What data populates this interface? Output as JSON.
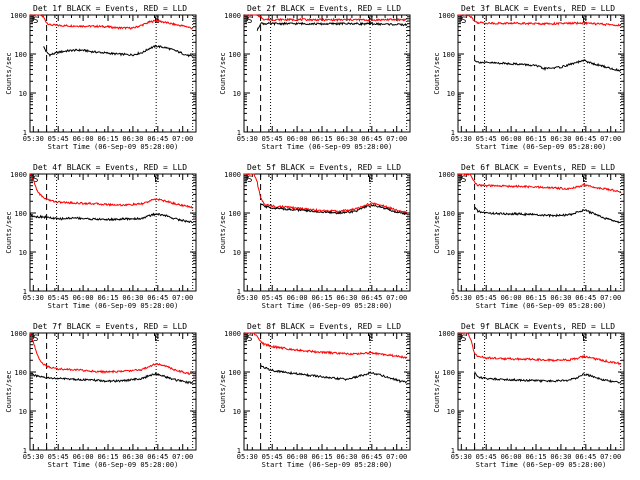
{
  "figure": {
    "xlabel": "Start Time (06-Sep-09 05:28:00)",
    "ylabel": "Counts/sec",
    "marker_start": "S",
    "marker_end": "E"
  },
  "chart_data": [
    {
      "type": "line",
      "title": "Det 1f BLACK = Events, RED = LLD",
      "xlabel": "Start Time (06-Sep-09 05:28:00)",
      "ylabel": "Counts/sec",
      "x_ticks": [
        "05:30",
        "05:45",
        "06:00",
        "06:15",
        "06:30",
        "06:45",
        "07:00"
      ],
      "y_ticks": [
        "1",
        "10",
        "100",
        "1000"
      ],
      "y_scale": "log",
      "xlim": [
        "05:28",
        "07:08"
      ],
      "ylim": [
        1,
        1000
      ],
      "markers": {
        "S": "05:28",
        "E": "06:44"
      },
      "dashed_vline": "05:38",
      "dotted_vlines": [
        "05:44",
        "06:44",
        "07:06"
      ],
      "series": [
        {
          "color": "#ff0000",
          "x": [
            "05:28",
            "05:34",
            "05:36",
            "05:38",
            "05:40",
            "05:45",
            "05:50",
            "06:00",
            "06:10",
            "06:15",
            "06:20",
            "06:30",
            "06:36",
            "06:40",
            "06:44",
            "06:50",
            "06:56",
            "07:02",
            "07:06"
          ],
          "values": [
            1000,
            1000,
            900,
            640,
            560,
            540,
            530,
            520,
            510,
            500,
            470,
            460,
            560,
            660,
            720,
            640,
            560,
            510,
            450
          ]
        },
        {
          "color": "#000000",
          "x": [
            "05:36",
            "05:38",
            "05:40",
            "05:45",
            "05:50",
            "05:55",
            "06:00",
            "06:05",
            "06:10",
            "06:20",
            "06:30",
            "06:36",
            "06:40",
            "06:44",
            "06:50",
            "06:56",
            "07:02",
            "07:06"
          ],
          "values": [
            160,
            110,
            95,
            110,
            120,
            125,
            125,
            115,
            110,
            100,
            95,
            110,
            140,
            160,
            145,
            120,
            95,
            85
          ]
        }
      ]
    },
    {
      "type": "line",
      "title": "Det 2f BLACK = Events, RED = LLD",
      "xlabel": "Start Time (06-Sep-09 05:28:00)",
      "ylabel": "Counts/sec",
      "x_ticks": [
        "05:30",
        "05:45",
        "06:00",
        "06:15",
        "06:30",
        "06:45",
        "07:00"
      ],
      "y_ticks": [
        "1",
        "10",
        "100",
        "1000"
      ],
      "y_scale": "log",
      "xlim": [
        "05:28",
        "07:08"
      ],
      "ylim": [
        1,
        1000
      ],
      "markers": {
        "S": "05:28",
        "E": "06:44"
      },
      "dashed_vline": "05:38",
      "dotted_vlines": [
        "05:44",
        "06:44",
        "07:06"
      ],
      "series": [
        {
          "color": "#ff0000",
          "x": [
            "05:28",
            "05:34",
            "05:36",
            "05:38",
            "05:40",
            "05:45",
            "05:55",
            "06:05",
            "06:15",
            "06:25",
            "06:35",
            "06:44",
            "06:55",
            "07:06"
          ],
          "values": [
            1000,
            1000,
            1000,
            900,
            780,
            760,
            760,
            760,
            750,
            750,
            760,
            740,
            760,
            760
          ]
        },
        {
          "color": "#000000",
          "x": [
            "05:36",
            "05:38",
            "05:40",
            "05:45",
            "05:55",
            "06:05",
            "06:15",
            "06:25",
            "06:35",
            "06:44",
            "06:55",
            "07:06"
          ],
          "values": [
            400,
            620,
            600,
            600,
            600,
            600,
            590,
            600,
            600,
            590,
            580,
            560
          ]
        }
      ]
    },
    {
      "type": "line",
      "title": "Det 3f BLACK = Events, RED = LLD",
      "xlabel": "Start Time (06-Sep-09 05:28:00)",
      "ylabel": "Counts/sec",
      "x_ticks": [
        "05:30",
        "05:45",
        "06:00",
        "06:15",
        "06:30",
        "06:45",
        "07:00"
      ],
      "y_ticks": [
        "1",
        "10",
        "100",
        "1000"
      ],
      "y_scale": "log",
      "xlim": [
        "05:28",
        "07:08"
      ],
      "ylim": [
        1,
        1000
      ],
      "markers": {
        "S": "05:28",
        "E": "06:44"
      },
      "dashed_vline": "05:38",
      "dotted_vlines": [
        "05:44",
        "06:44",
        "07:06"
      ],
      "series": [
        {
          "color": "#ff0000",
          "x": [
            "05:28",
            "05:34",
            "05:36",
            "05:38",
            "05:40",
            "05:45",
            "05:55",
            "06:05",
            "06:15",
            "06:25",
            "06:35",
            "06:44",
            "06:55",
            "07:06"
          ],
          "values": [
            1000,
            1000,
            900,
            680,
            640,
            620,
            610,
            620,
            600,
            600,
            610,
            620,
            580,
            540
          ]
        },
        {
          "color": "#000000",
          "x": [
            "05:38",
            "05:40",
            "05:45",
            "05:55",
            "06:05",
            "06:15",
            "06:20",
            "06:30",
            "06:36",
            "06:44",
            "06:50",
            "06:56",
            "07:02",
            "07:06"
          ],
          "values": [
            70,
            62,
            60,
            58,
            55,
            50,
            42,
            46,
            55,
            68,
            55,
            48,
            40,
            38
          ]
        }
      ]
    },
    {
      "type": "line",
      "title": "Det 4f BLACK = Events, RED = LLD",
      "xlabel": "Start Time (06-Sep-09 05:28:00)",
      "ylabel": "Counts/sec",
      "x_ticks": [
        "05:30",
        "05:45",
        "06:00",
        "06:15",
        "06:30",
        "06:45",
        "07:00"
      ],
      "y_ticks": [
        "1",
        "10",
        "100",
        "1000"
      ],
      "y_scale": "log",
      "xlim": [
        "05:28",
        "07:08"
      ],
      "ylim": [
        1,
        1000
      ],
      "markers": {
        "S": "05:28",
        "E": "06:44"
      },
      "dashed_vline": "05:38",
      "dotted_vlines": [
        "05:44",
        "06:44",
        "07:06"
      ],
      "series": [
        {
          "color": "#ff0000",
          "x": [
            "05:28",
            "05:30",
            "05:32",
            "05:34",
            "05:36",
            "05:40",
            "05:45",
            "05:55",
            "06:05",
            "06:15",
            "06:25",
            "06:35",
            "06:40",
            "06:44",
            "06:50",
            "06:56",
            "07:02",
            "07:06"
          ],
          "values": [
            1000,
            700,
            400,
            300,
            250,
            210,
            190,
            180,
            175,
            165,
            160,
            170,
            200,
            230,
            200,
            170,
            150,
            140
          ]
        },
        {
          "color": "#000000",
          "x": [
            "05:28",
            "05:30",
            "05:32",
            "05:36",
            "05:40",
            "05:45",
            "05:55",
            "06:05",
            "06:15",
            "06:25",
            "06:35",
            "06:40",
            "06:44",
            "06:50",
            "06:56",
            "07:02",
            "07:06"
          ],
          "values": [
            90,
            85,
            80,
            80,
            75,
            70,
            75,
            70,
            68,
            70,
            72,
            85,
            95,
            85,
            70,
            62,
            58
          ]
        }
      ]
    },
    {
      "type": "line",
      "title": "Det 5f BLACK = Events, RED = LLD",
      "xlabel": "Start Time (06-Sep-09 05:28:00)",
      "ylabel": "Counts/sec",
      "x_ticks": [
        "05:30",
        "05:45",
        "06:00",
        "06:15",
        "06:30",
        "06:45",
        "07:00"
      ],
      "y_ticks": [
        "1",
        "10",
        "100",
        "1000"
      ],
      "y_scale": "log",
      "xlim": [
        "05:28",
        "07:08"
      ],
      "ylim": [
        1,
        1000
      ],
      "markers": {
        "S": "05:28",
        "E": "06:44"
      },
      "dashed_vline": "05:38",
      "dotted_vlines": [
        "05:44",
        "06:44",
        "07:06"
      ],
      "series": [
        {
          "color": "#ff0000",
          "x": [
            "05:28",
            "05:34",
            "05:36",
            "05:38",
            "05:40",
            "05:45",
            "05:55",
            "06:05",
            "06:15",
            "06:25",
            "06:35",
            "06:40",
            "06:44",
            "06:50",
            "06:56",
            "07:02",
            "07:06"
          ],
          "values": [
            1000,
            1000,
            600,
            250,
            170,
            150,
            140,
            125,
            115,
            110,
            125,
            150,
            175,
            165,
            135,
            115,
            105
          ]
        },
        {
          "color": "#000000",
          "x": [
            "05:38",
            "05:40",
            "05:45",
            "05:55",
            "06:05",
            "06:15",
            "06:25",
            "06:35",
            "06:40",
            "06:44",
            "06:50",
            "06:56",
            "07:02",
            "07:06"
          ],
          "values": [
            170,
            150,
            135,
            125,
            115,
            105,
            100,
            110,
            135,
            155,
            145,
            120,
            100,
            95
          ]
        }
      ]
    },
    {
      "type": "line",
      "title": "Det 6f BLACK = Events, RED = LLD",
      "xlabel": "Start Time (06-Sep-09 05:28:00)",
      "ylabel": "Counts/sec",
      "x_ticks": [
        "05:30",
        "05:45",
        "06:00",
        "06:15",
        "06:30",
        "06:45",
        "07:00"
      ],
      "y_ticks": [
        "1",
        "10",
        "100",
        "1000"
      ],
      "y_scale": "log",
      "xlim": [
        "05:28",
        "07:08"
      ],
      "ylim": [
        1,
        1000
      ],
      "markers": {
        "S": "05:28",
        "E": "06:44"
      },
      "dashed_vline": "05:38",
      "dotted_vlines": [
        "05:44",
        "06:44",
        "07:06"
      ],
      "series": [
        {
          "color": "#ff0000",
          "x": [
            "05:28",
            "05:34",
            "05:36",
            "05:38",
            "05:40",
            "05:45",
            "05:55",
            "06:05",
            "06:15",
            "06:25",
            "06:35",
            "06:40",
            "06:44",
            "06:50",
            "06:56",
            "07:02",
            "07:06"
          ],
          "values": [
            1000,
            1000,
            900,
            600,
            520,
            500,
            490,
            480,
            460,
            440,
            420,
            470,
            520,
            460,
            420,
            380,
            350
          ]
        },
        {
          "color": "#000000",
          "x": [
            "05:38",
            "05:40",
            "05:45",
            "05:55",
            "06:05",
            "06:15",
            "06:25",
            "06:35",
            "06:40",
            "06:44",
            "06:50",
            "06:56",
            "07:02",
            "07:06"
          ],
          "values": [
            140,
            110,
            100,
            95,
            95,
            90,
            85,
            90,
            105,
            120,
            95,
            75,
            62,
            58
          ]
        }
      ]
    },
    {
      "type": "line",
      "title": "Det 7f BLACK = Events, RED = LLD",
      "xlabel": "Start Time (06-Sep-09 05:28:00)",
      "ylabel": "Counts/sec",
      "x_ticks": [
        "05:30",
        "05:45",
        "06:00",
        "06:15",
        "06:30",
        "06:45",
        "07:00"
      ],
      "y_ticks": [
        "1",
        "10",
        "100",
        "1000"
      ],
      "y_scale": "log",
      "xlim": [
        "05:28",
        "07:08"
      ],
      "ylim": [
        1,
        1000
      ],
      "markers": {
        "S": "05:28",
        "E": "06:44"
      },
      "dashed_vline": "05:38",
      "dotted_vlines": [
        "05:44",
        "06:44",
        "07:06"
      ],
      "series": [
        {
          "color": "#ff0000",
          "x": [
            "05:28",
            "05:30",
            "05:32",
            "05:34",
            "05:36",
            "05:40",
            "05:45",
            "05:55",
            "06:05",
            "06:15",
            "06:25",
            "06:35",
            "06:40",
            "06:44",
            "06:50",
            "06:56",
            "07:02",
            "07:06"
          ],
          "values": [
            1000,
            600,
            300,
            200,
            160,
            130,
            120,
            115,
            105,
            100,
            105,
            115,
            140,
            165,
            140,
            110,
            95,
            90
          ]
        },
        {
          "color": "#000000",
          "x": [
            "05:28",
            "05:30",
            "05:32",
            "05:36",
            "05:40",
            "05:45",
            "05:55",
            "06:05",
            "06:15",
            "06:25",
            "06:35",
            "06:40",
            "06:44",
            "06:50",
            "06:56",
            "07:02",
            "07:06"
          ],
          "values": [
            95,
            85,
            78,
            72,
            70,
            68,
            65,
            62,
            58,
            60,
            68,
            80,
            90,
            75,
            62,
            55,
            52
          ]
        }
      ]
    },
    {
      "type": "line",
      "title": "Det 8f BLACK = Events, RED = LLD",
      "xlabel": "Start Time (06-Sep-09 05:28:00)",
      "ylabel": "Counts/sec",
      "x_ticks": [
        "05:30",
        "05:45",
        "06:00",
        "06:15",
        "06:30",
        "06:45",
        "07:00"
      ],
      "y_ticks": [
        "1",
        "10",
        "100",
        "1000"
      ],
      "y_scale": "log",
      "xlim": [
        "05:28",
        "07:08"
      ],
      "ylim": [
        1,
        1000
      ],
      "markers": {
        "S": "05:28",
        "E": "06:44"
      },
      "dashed_vline": "05:38",
      "dotted_vlines": [
        "05:44",
        "06:44",
        "07:06"
      ],
      "series": [
        {
          "color": "#ff0000",
          "x": [
            "05:28",
            "05:34",
            "05:36",
            "05:38",
            "05:40",
            "05:45",
            "05:55",
            "06:05",
            "06:15",
            "06:25",
            "06:35",
            "06:40",
            "06:44",
            "06:50",
            "06:56",
            "07:02",
            "07:06"
          ],
          "values": [
            1000,
            1000,
            800,
            600,
            520,
            450,
            390,
            350,
            320,
            300,
            290,
            300,
            310,
            290,
            270,
            250,
            230
          ]
        },
        {
          "color": "#000000",
          "x": [
            "05:38",
            "05:40",
            "05:45",
            "05:55",
            "06:05",
            "06:15",
            "06:20",
            "06:30",
            "06:36",
            "06:44",
            "06:50",
            "06:56",
            "07:02",
            "07:06"
          ],
          "values": [
            150,
            130,
            110,
            95,
            85,
            75,
            70,
            65,
            75,
            95,
            85,
            70,
            58,
            55
          ]
        }
      ]
    },
    {
      "type": "line",
      "title": "Det 9f BLACK = Events, RED = LLD",
      "xlabel": "Start Time (06-Sep-09 05:28:00)",
      "ylabel": "Counts/sec",
      "x_ticks": [
        "05:30",
        "05:45",
        "06:00",
        "06:15",
        "06:30",
        "06:45",
        "07:00"
      ],
      "y_ticks": [
        "1",
        "10",
        "100",
        "1000"
      ],
      "y_scale": "log",
      "xlim": [
        "05:28",
        "07:08"
      ],
      "ylim": [
        1,
        1000
      ],
      "markers": {
        "S": "05:28",
        "E": "06:44"
      },
      "dashed_vline": "05:38",
      "dotted_vlines": [
        "05:44",
        "06:44",
        "07:06"
      ],
      "series": [
        {
          "color": "#ff0000",
          "x": [
            "05:28",
            "05:34",
            "05:36",
            "05:38",
            "05:40",
            "05:45",
            "05:55",
            "06:05",
            "06:15",
            "06:25",
            "06:35",
            "06:40",
            "06:44",
            "06:50",
            "06:56",
            "07:02",
            "07:06"
          ],
          "values": [
            1000,
            1000,
            600,
            300,
            250,
            230,
            220,
            215,
            210,
            200,
            205,
            225,
            250,
            220,
            195,
            175,
            165
          ]
        },
        {
          "color": "#000000",
          "x": [
            "05:38",
            "05:40",
            "05:45",
            "05:55",
            "06:05",
            "06:15",
            "06:25",
            "06:35",
            "06:40",
            "06:44",
            "06:50",
            "06:56",
            "07:02",
            "07:06"
          ],
          "values": [
            100,
            75,
            68,
            65,
            62,
            60,
            58,
            62,
            72,
            90,
            75,
            62,
            56,
            52
          ]
        }
      ]
    }
  ]
}
